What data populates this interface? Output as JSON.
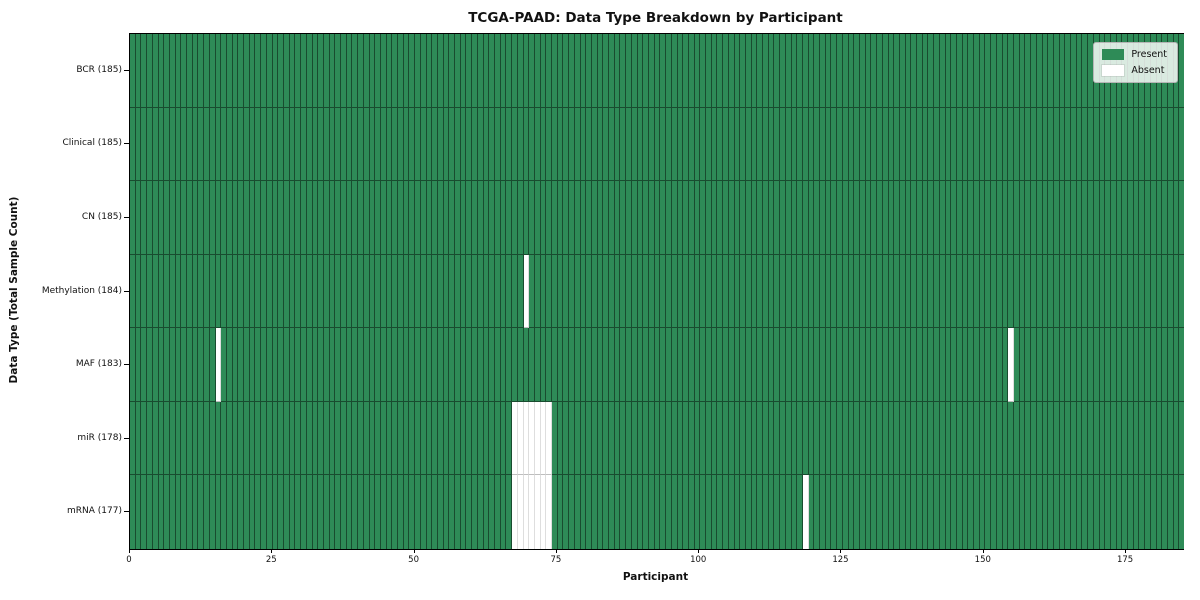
{
  "chart_data": {
    "type": "heatmap",
    "title": "TCGA-PAAD: Data Type Breakdown by Participant",
    "xlabel": "Participant",
    "ylabel": "Data Type (Total Sample Count)",
    "n_participants": 185,
    "xlim": [
      0,
      185
    ],
    "x_ticks": [
      0,
      25,
      50,
      75,
      100,
      125,
      150,
      175
    ],
    "grid": false,
    "legend_position": "upper right",
    "legend": [
      {
        "label": "Present",
        "color": "#2e8b57"
      },
      {
        "label": "Absent",
        "color": "#ffffff"
      }
    ],
    "colors": {
      "present": "#2e8b57",
      "absent": "#ffffff"
    },
    "rows": [
      {
        "label": "BCR (185)",
        "total": 185,
        "absent_participants": []
      },
      {
        "label": "Clinical (185)",
        "total": 185,
        "absent_participants": []
      },
      {
        "label": "CN (185)",
        "total": 185,
        "absent_participants": []
      },
      {
        "label": "Methylation (184)",
        "total": 184,
        "absent_participants": [
          69
        ]
      },
      {
        "label": "MAF (183)",
        "total": 183,
        "absent_participants": [
          15,
          154
        ]
      },
      {
        "label": "miR (178)",
        "total": 178,
        "absent_participants": [
          67,
          68,
          69,
          70,
          71,
          72,
          73
        ]
      },
      {
        "label": "mRNA (177)",
        "total": 177,
        "absent_participants": [
          67,
          68,
          69,
          70,
          71,
          72,
          73,
          118
        ]
      }
    ]
  }
}
